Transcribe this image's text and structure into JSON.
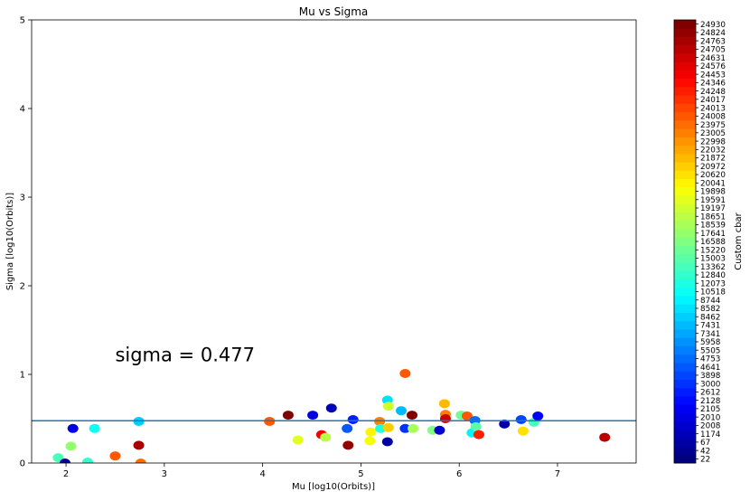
{
  "chart_data": {
    "type": "scatter",
    "title": "Mu vs Sigma",
    "xlabel": "Mu [log10(Orbits)]",
    "ylabel": "Sigma [log10(Orbits)]",
    "xlim": [
      1.65,
      7.8
    ],
    "ylim": [
      0,
      5
    ],
    "xticks": [
      "2",
      "3",
      "4",
      "5",
      "6",
      "7"
    ],
    "yticks": [
      "0",
      "1",
      "2",
      "3",
      "4",
      "5"
    ],
    "grid": false,
    "hline": {
      "y": 0.477,
      "color": "#1f77b4"
    },
    "annotation": {
      "text": "sigma = 0.477",
      "x": 2.5,
      "y": 1.15
    },
    "colorbar": {
      "label": "Custom cbar",
      "ticks": [
        "22",
        "42",
        "67",
        "1174",
        "2008",
        "2010",
        "2105",
        "2128",
        "2612",
        "3000",
        "3898",
        "4641",
        "4753",
        "5505",
        "5958",
        "7341",
        "7431",
        "8462",
        "8582",
        "8744",
        "10518",
        "12073",
        "12840",
        "13362",
        "15003",
        "15220",
        "16588",
        "17641",
        "18539",
        "18651",
        "19197",
        "19591",
        "19898",
        "20041",
        "20620",
        "20972",
        "21872",
        "22032",
        "22998",
        "23005",
        "23975",
        "24008",
        "24013",
        "24017",
        "24248",
        "24346",
        "24453",
        "24576",
        "24631",
        "24705",
        "24763",
        "24824",
        "24930"
      ]
    },
    "points": [
      {
        "x": 2.07,
        "y": 0.39,
        "c": 2010
      },
      {
        "x": 2.29,
        "y": 0.39,
        "c": 10518
      },
      {
        "x": 2.74,
        "y": 0.47,
        "c": 8462
      },
      {
        "x": 1.92,
        "y": 0.06,
        "c": 13362
      },
      {
        "x": 2.05,
        "y": 0.19,
        "c": 17641
      },
      {
        "x": 2.22,
        "y": 0.01,
        "c": 12840
      },
      {
        "x": 1.99,
        "y": 0.0,
        "c": 42
      },
      {
        "x": 2.5,
        "y": 0.08,
        "c": 24008
      },
      {
        "x": 2.74,
        "y": 0.2,
        "c": 24763
      },
      {
        "x": 2.76,
        "y": 0.0,
        "c": 23975
      },
      {
        "x": 4.07,
        "y": 0.47,
        "c": 24008
      },
      {
        "x": 4.26,
        "y": 0.54,
        "c": 24930
      },
      {
        "x": 4.51,
        "y": 0.54,
        "c": 2010
      },
      {
        "x": 4.7,
        "y": 0.62,
        "c": 1174
      },
      {
        "x": 4.36,
        "y": 0.26,
        "c": 19591
      },
      {
        "x": 4.6,
        "y": 0.32,
        "c": 24453
      },
      {
        "x": 4.64,
        "y": 0.29,
        "c": 18651
      },
      {
        "x": 4.87,
        "y": 0.2,
        "c": 24824
      },
      {
        "x": 4.86,
        "y": 0.39,
        "c": 4641
      },
      {
        "x": 4.92,
        "y": 0.49,
        "c": 2612
      },
      {
        "x": 5.1,
        "y": 0.35,
        "c": 20041
      },
      {
        "x": 5.09,
        "y": 0.25,
        "c": 19898
      },
      {
        "x": 5.19,
        "y": 0.47,
        "c": 23005
      },
      {
        "x": 5.2,
        "y": 0.39,
        "c": 12073
      },
      {
        "x": 5.27,
        "y": 0.24,
        "c": 67
      },
      {
        "x": 5.28,
        "y": 0.4,
        "c": 20972
      },
      {
        "x": 5.27,
        "y": 0.71,
        "c": 8582
      },
      {
        "x": 5.28,
        "y": 0.64,
        "c": 19197
      },
      {
        "x": 5.41,
        "y": 0.59,
        "c": 7431
      },
      {
        "x": 5.45,
        "y": 1.01,
        "c": 24008
      },
      {
        "x": 5.45,
        "y": 0.39,
        "c": 3000
      },
      {
        "x": 5.52,
        "y": 0.54,
        "c": 24930
      },
      {
        "x": 5.53,
        "y": 0.39,
        "c": 18539
      },
      {
        "x": 5.73,
        "y": 0.37,
        "c": 16588
      },
      {
        "x": 5.8,
        "y": 0.37,
        "c": 2008
      },
      {
        "x": 5.85,
        "y": 0.67,
        "c": 21872
      },
      {
        "x": 5.86,
        "y": 0.55,
        "c": 23005
      },
      {
        "x": 5.86,
        "y": 0.5,
        "c": 24631
      },
      {
        "x": 6.02,
        "y": 0.54,
        "c": 15220
      },
      {
        "x": 6.08,
        "y": 0.53,
        "c": 24008
      },
      {
        "x": 6.13,
        "y": 0.34,
        "c": 8744
      },
      {
        "x": 6.16,
        "y": 0.48,
        "c": 4753
      },
      {
        "x": 6.17,
        "y": 0.41,
        "c": 15003
      },
      {
        "x": 6.2,
        "y": 0.32,
        "c": 24248
      },
      {
        "x": 6.46,
        "y": 0.44,
        "c": 67
      },
      {
        "x": 6.63,
        "y": 0.49,
        "c": 3898
      },
      {
        "x": 6.65,
        "y": 0.36,
        "c": 20620
      },
      {
        "x": 6.76,
        "y": 0.46,
        "c": 13362
      },
      {
        "x": 6.8,
        "y": 0.53,
        "c": 2105
      },
      {
        "x": 7.48,
        "y": 0.29,
        "c": 24705
      }
    ]
  }
}
